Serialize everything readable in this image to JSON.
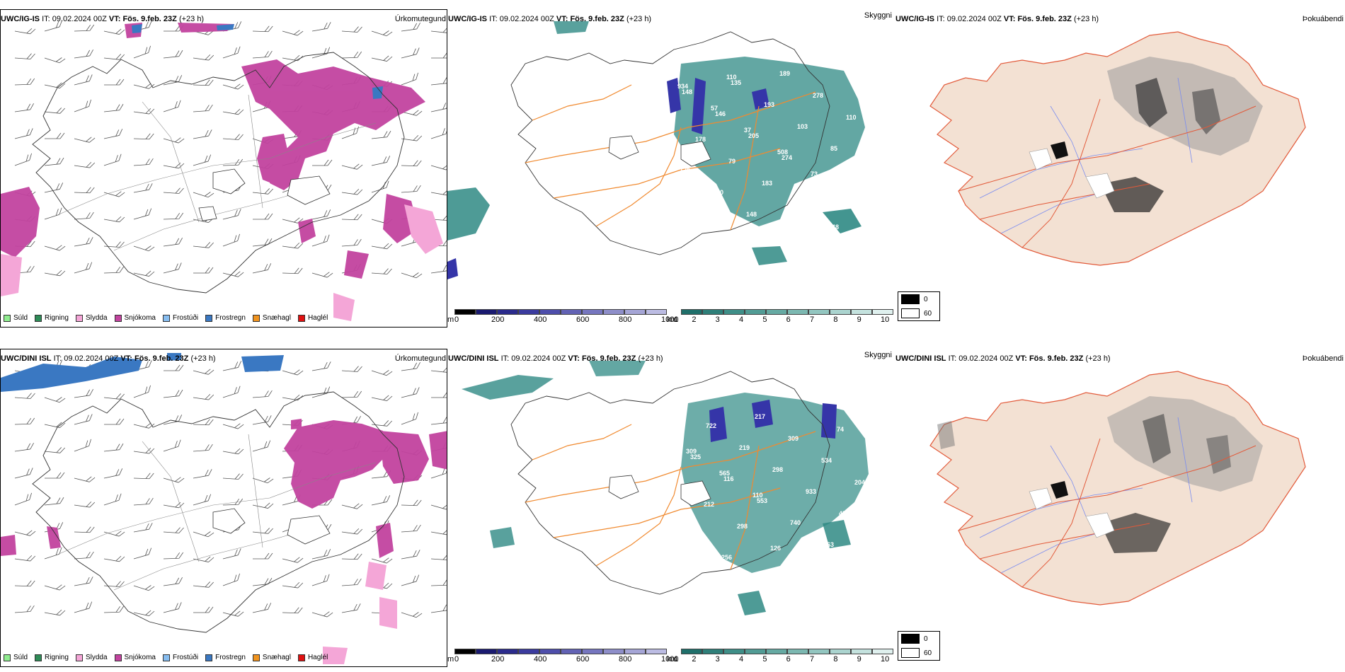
{
  "rows": [
    {
      "model": "UWC/IG-IS",
      "it_label": "IT:",
      "it_value": "09.02.2024 00Z",
      "vt_label": "VT:",
      "vt_value": "Fös. 9.feb. 23Z",
      "lead": "(+23 h)",
      "precip_title": "Úrkomutegund",
      "cloud_title": "Skyggni",
      "thaw_title": "Þokuábendi",
      "cloud_labels": [
        "148",
        "146",
        "205",
        "274",
        "888",
        "193",
        "222",
        "135",
        "193",
        "103",
        "85",
        "179",
        "170",
        "148",
        "189",
        "278",
        "110",
        "178",
        "79",
        "183",
        "139",
        "148",
        "934",
        "57",
        "37",
        "508",
        "73",
        "189",
        "2",
        "110"
      ]
    },
    {
      "model": "UWC/DINI ISL",
      "it_label": "IT:",
      "it_value": "09.02.2024 00Z",
      "vt_label": "VT:",
      "vt_value": "Fös. 9.feb. 23Z",
      "lead": "(+23 h)",
      "precip_title": "Úrkomutegund",
      "cloud_title": "Skyggni",
      "thaw_title": "Þokuábendi",
      "cloud_labels": [
        "325",
        "116",
        "553",
        "740",
        "263",
        "199",
        "722",
        "219",
        "298",
        "933",
        "451",
        "208",
        "256",
        "217",
        "309",
        "534",
        "204",
        "212",
        "298",
        "126",
        "851",
        "74",
        "309",
        "565",
        "110"
      ]
    }
  ],
  "precip_legend": [
    {
      "label": "Súld",
      "color": "#90ee90"
    },
    {
      "label": "Rigning",
      "color": "#2e8b57"
    },
    {
      "label": "Slydda",
      "color": "#f4a6d7"
    },
    {
      "label": "Snjókoma",
      "color": "#c2439f"
    },
    {
      "label": "Frostúði",
      "color": "#87bdf0"
    },
    {
      "label": "Frostregn",
      "color": "#3a78c2"
    },
    {
      "label": "Snæhagl",
      "color": "#f0931e"
    },
    {
      "label": "Haglél",
      "color": "#e01010"
    }
  ],
  "height_bar": {
    "unit": "m",
    "ticks": [
      "0",
      "200",
      "400",
      "600",
      "800",
      "1000"
    ],
    "colors": [
      "#000000",
      "#1a1a70",
      "#2b2b8c",
      "#3b3b9e",
      "#4e4eab",
      "#6262b4",
      "#7676bf",
      "#8e8ec9",
      "#a5a5d6",
      "#bcbce3"
    ]
  },
  "vis_bar": {
    "unit": "km",
    "ticks": [
      "1",
      "2",
      "3",
      "4",
      "5",
      "6",
      "7",
      "8",
      "9",
      "10"
    ],
    "colors": [
      "#1f6f6a",
      "#2f7f79",
      "#3f8f88",
      "#529c95",
      "#66aaa3",
      "#7cb8b1",
      "#93c6c0",
      "#abd4cf",
      "#c4e2de",
      "#dff0ee"
    ]
  },
  "cloud_box": {
    "labels": [
      "0",
      "60"
    ],
    "colors": [
      "#000000",
      "#ffffff"
    ]
  },
  "colors": {
    "snow": "#c2439f",
    "sleet": "#f4a6d7",
    "freezing_rain": "#3a78c2",
    "teal": "#2f8a84",
    "cloud_blue": "#3535a8",
    "road": "#f08a30",
    "land": "#f3e1d3",
    "road_red": "#e25a3a"
  }
}
